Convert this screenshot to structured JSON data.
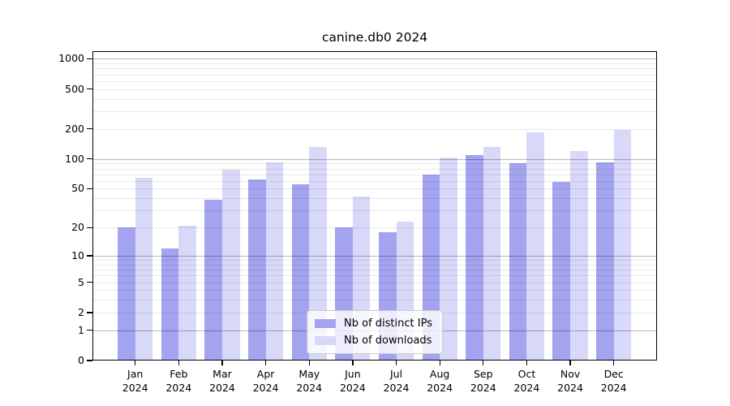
{
  "title": "canine.db0 2024",
  "chart_data": {
    "type": "bar",
    "title": "canine.db0 2024",
    "categories": [
      "Jan 2024",
      "Feb 2024",
      "Mar 2024",
      "Apr 2024",
      "May 2024",
      "Jun 2024",
      "Jul 2024",
      "Aug 2024",
      "Sep 2024",
      "Oct 2024",
      "Nov 2024",
      "Dec 2024"
    ],
    "series": [
      {
        "name": "Nb of distinct IPs",
        "color": "#a3a3f0",
        "values": [
          20,
          12,
          39,
          62,
          56,
          20,
          18,
          70,
          110,
          91,
          59,
          93
        ]
      },
      {
        "name": "Nb of downloads",
        "color": "#d8d8f8",
        "values": [
          65,
          21,
          78,
          92,
          132,
          42,
          23,
          104,
          131,
          185,
          120,
          197
        ]
      }
    ],
    "xlabel": "",
    "ylabel": "",
    "yscale": "log1p",
    "ylim": [
      0,
      1190
    ],
    "y_ticks": [
      1000,
      500,
      200,
      100,
      50,
      20,
      10,
      5,
      2,
      1,
      0
    ],
    "y_major_gridlines": [
      1,
      10,
      100,
      1000
    ],
    "grid": true,
    "grid_above_bars": true,
    "legend_position": "lower center"
  },
  "colors": {
    "distinct_ips_bar": "#a3a3f0",
    "downloads_bar": "#d8d8f8",
    "major_grid": "rgba(0,0,0,0.28)",
    "minor_grid": "rgba(0,0,0,0.09)",
    "spine": "#000000",
    "background": "#ffffff"
  }
}
